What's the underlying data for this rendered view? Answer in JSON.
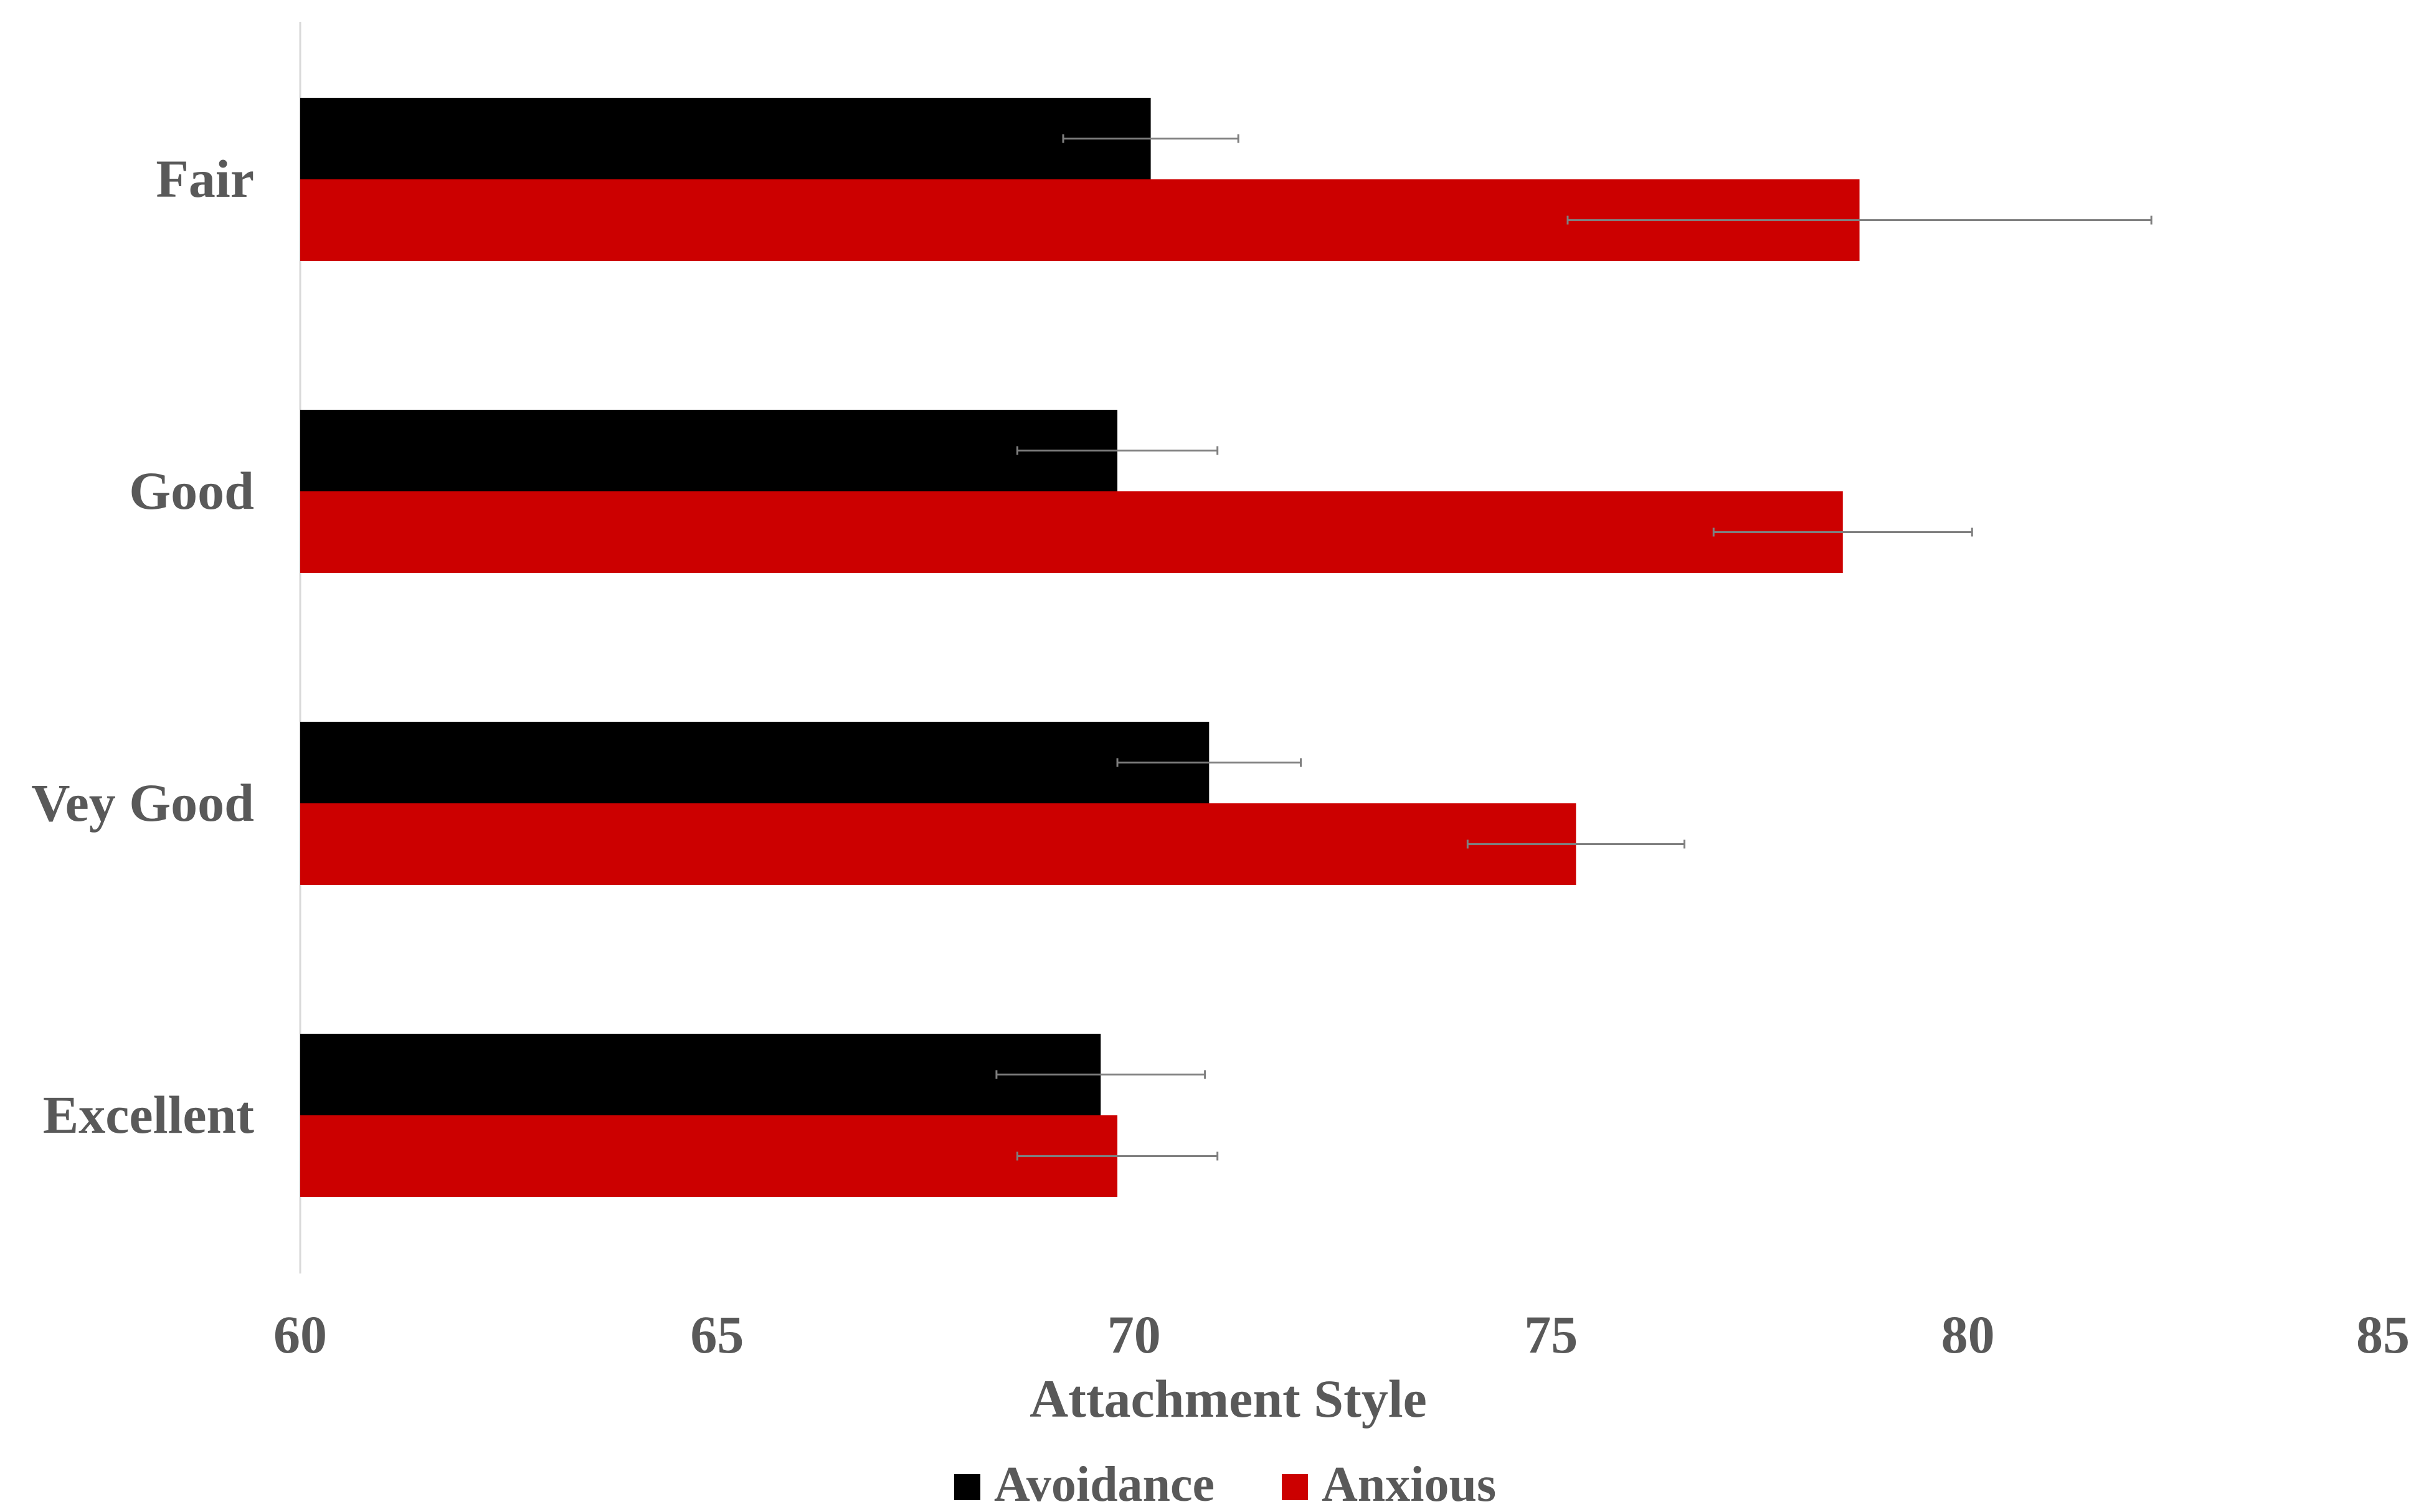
{
  "chart_data": {
    "type": "bar",
    "orientation": "horizontal",
    "categories": [
      "Excellent",
      "Vey Good",
      "Good",
      "Fair"
    ],
    "series": [
      {
        "name": "Avoidance",
        "color": "#000000",
        "values": [
          69.6,
          70.9,
          69.8,
          70.2
        ],
        "error": [
          1.25,
          1.1,
          1.2,
          1.05
        ]
      },
      {
        "name": "Anxious",
        "color": "#cc0000",
        "values": [
          69.8,
          75.3,
          78.5,
          78.7
        ],
        "error": [
          1.2,
          1.3,
          1.55,
          3.5
        ]
      }
    ],
    "xlabel": "Attachment Style",
    "ylabel": "",
    "title": "",
    "xlim": [
      60,
      85
    ],
    "xticks": [
      "60",
      "65",
      "70",
      "75",
      "80",
      "85"
    ],
    "grid": false,
    "legend_position": "bottom",
    "error_bar_color": "#7f7f7f",
    "axis_color": "#d9d9d9"
  }
}
